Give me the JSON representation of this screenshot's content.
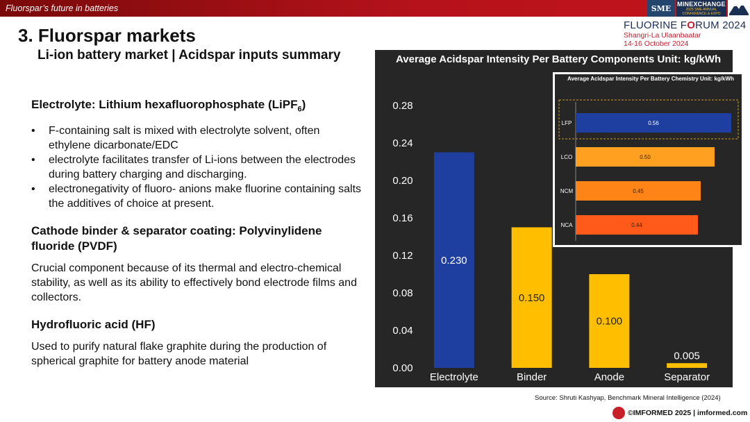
{
  "header": {
    "deck_title": "Fluorspar’s future in batteries",
    "logo_sme": "SME",
    "logo_minexchange": "MINEXCHANGE",
    "logo_minexchange_sub": "2025 SME ANNUAL CONFERENCE & EXPO"
  },
  "slide": {
    "title": "3. Fluorspar markets",
    "subtitle": "Li-ion battery market | Acidspar inputs summary"
  },
  "forum": {
    "title_a": "FLUORINE F",
    "title_b": "O",
    "title_c": "RUM 2024",
    "venue": "Shangri-La Ulaanbaatar",
    "dates": "14-16 October 2024"
  },
  "sections": [
    {
      "heading": "Electrolyte: Lithium hexafluorophosphate (LiPF",
      "heading_sub": "6",
      "heading_end": ")",
      "bullets": [
        "F-containing salt is mixed with electrolyte solvent, often ethylene dicarbonate/EDC",
        "electrolyte facilitates transfer of Li-ions between the electrodes during battery charging and discharging.",
        "electronegativity of fluoro- anions make fluorine containing salts the additives of choice at present."
      ]
    },
    {
      "heading": "Cathode binder & separator coating: Polyvinylidene fluoride (PVDF)",
      "text": "Crucial component because of its thermal and electro-chemical stability, as well as its ability to effectively bond electrode films and collectors."
    },
    {
      "heading": "Hydrofluoric acid (HF)",
      "text": "Used to purify natural flake graphite during the production of spherical graphite for battery anode material"
    }
  ],
  "chart_data": [
    {
      "type": "bar",
      "title": "Average Acidspar Intensity Per Battery Components Unit: kg/kWh",
      "categories": [
        "Electrolyte",
        "Binder",
        "Anode",
        "Separator"
      ],
      "values": [
        0.23,
        0.15,
        0.1,
        0.005
      ],
      "value_labels": [
        "0.230",
        "0.150",
        "0.100",
        "0.005"
      ],
      "colors": [
        "#1e3fa0",
        "#ffbf00",
        "#ffbf00",
        "#ffbf00"
      ],
      "yticks": [
        "0.00",
        "0.04",
        "0.08",
        "0.12",
        "0.16",
        "0.20",
        "0.24",
        "0.28"
      ],
      "ylim": [
        0,
        0.28
      ],
      "xlabel": "",
      "ylabel": ""
    },
    {
      "type": "bar",
      "orientation": "horizontal",
      "title": "Average Acidspar Intensity Per Battery Chemistry Unit: kg/kWh",
      "categories": [
        "LFP",
        "LCO",
        "NCM",
        "NCA"
      ],
      "values": [
        0.56,
        0.5,
        0.45,
        0.44
      ],
      "value_labels": [
        "0.56",
        "0.50",
        "0.45",
        "0.44"
      ],
      "colors": [
        "#1e3fa0",
        "#ffa020",
        "#ff8418",
        "#ff5a1a"
      ],
      "xlim": [
        0,
        0.58
      ]
    }
  ],
  "source": "Source: Shruti Kashyap, Benchmark Mineral Intelligence (2024)",
  "footer": "©IMFORMED 2025  | imformed.com"
}
